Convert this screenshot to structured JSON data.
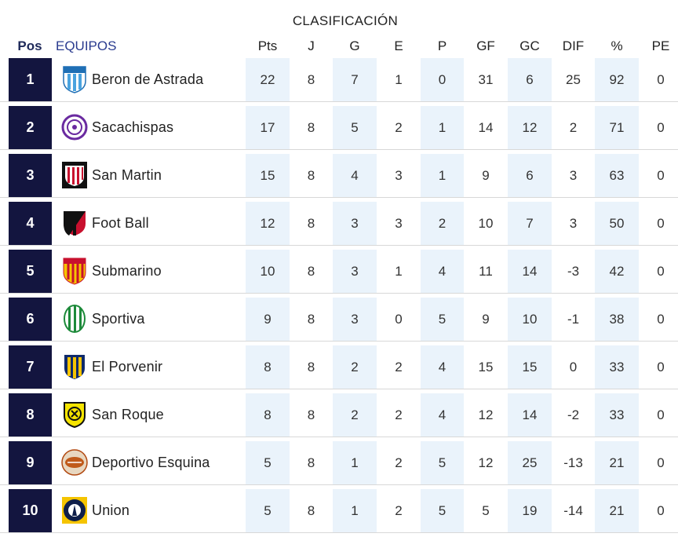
{
  "title": "CLASIFICACIÓN",
  "headers": {
    "pos": "Pos",
    "team": "EQUIPOS",
    "pts": "Pts",
    "j": "J",
    "g": "G",
    "e": "E",
    "p": "P",
    "gf": "GF",
    "gc": "GC",
    "dif": "DIF",
    "pct": "%",
    "pe": "PE"
  },
  "rows": [
    {
      "pos": "1",
      "team": "Beron de Astrada",
      "crest": "beron-crest",
      "pts": "22",
      "j": "8",
      "g": "7",
      "e": "1",
      "p": "0",
      "gf": "31",
      "gc": "6",
      "dif": "25",
      "pct": "92",
      "pe": "0"
    },
    {
      "pos": "2",
      "team": "Sacachispas",
      "crest": "sacachispas-crest",
      "pts": "17",
      "j": "8",
      "g": "5",
      "e": "2",
      "p": "1",
      "gf": "14",
      "gc": "12",
      "dif": "2",
      "pct": "71",
      "pe": "0"
    },
    {
      "pos": "3",
      "team": "San Martin",
      "crest": "san-martin-crest",
      "pts": "15",
      "j": "8",
      "g": "4",
      "e": "3",
      "p": "1",
      "gf": "9",
      "gc": "6",
      "dif": "3",
      "pct": "63",
      "pe": "0"
    },
    {
      "pos": "4",
      "team": "Foot Ball",
      "crest": "foot-ball-crest",
      "pts": "12",
      "j": "8",
      "g": "3",
      "e": "3",
      "p": "2",
      "gf": "10",
      "gc": "7",
      "dif": "3",
      "pct": "50",
      "pe": "0"
    },
    {
      "pos": "5",
      "team": "Submarino",
      "crest": "submarino-crest",
      "pts": "10",
      "j": "8",
      "g": "3",
      "e": "1",
      "p": "4",
      "gf": "11",
      "gc": "14",
      "dif": "-3",
      "pct": "42",
      "pe": "0"
    },
    {
      "pos": "6",
      "team": "Sportiva",
      "crest": "sportiva-crest",
      "pts": "9",
      "j": "8",
      "g": "3",
      "e": "0",
      "p": "5",
      "gf": "9",
      "gc": "10",
      "dif": "-1",
      "pct": "38",
      "pe": "0"
    },
    {
      "pos": "7",
      "team": "El Porvenir",
      "crest": "el-porvenir-crest",
      "pts": "8",
      "j": "8",
      "g": "2",
      "e": "2",
      "p": "4",
      "gf": "15",
      "gc": "15",
      "dif": "0",
      "pct": "33",
      "pe": "0"
    },
    {
      "pos": "8",
      "team": "San Roque",
      "crest": "san-roque-crest",
      "pts": "8",
      "j": "8",
      "g": "2",
      "e": "2",
      "p": "4",
      "gf": "12",
      "gc": "14",
      "dif": "-2",
      "pct": "33",
      "pe": "0"
    },
    {
      "pos": "9",
      "team": "Deportivo Esquina",
      "crest": "deportivo-esquina-crest",
      "pts": "5",
      "j": "8",
      "g": "1",
      "e": "2",
      "p": "5",
      "gf": "12",
      "gc": "25",
      "dif": "-13",
      "pct": "21",
      "pe": "0"
    },
    {
      "pos": "10",
      "team": "Union",
      "crest": "union-crest",
      "pts": "5",
      "j": "8",
      "g": "1",
      "e": "2",
      "p": "5",
      "gf": "5",
      "gc": "19",
      "dif": "-14",
      "pct": "21",
      "pe": "0"
    }
  ],
  "colors": {
    "pos_box": "#13153f",
    "shade": "#eaf3fb",
    "header_team": "#2a3b8f"
  }
}
